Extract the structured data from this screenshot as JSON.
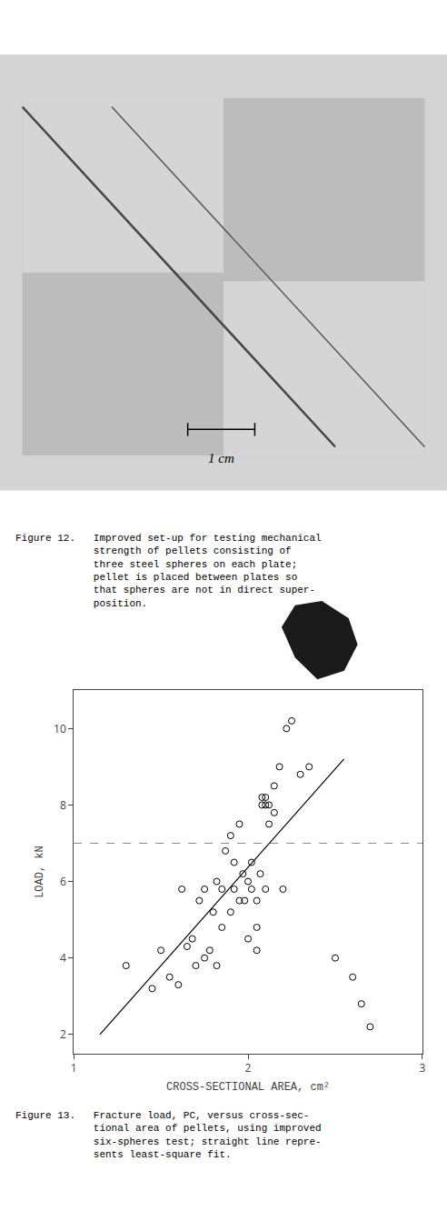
{
  "chart_data": {
    "type": "scatter",
    "xlabel": "CROSS-SECTIONAL AREA, cm²",
    "ylabel": "LOAD, kN",
    "series": [
      {
        "type": "scatter",
        "marker": "open_circle",
        "color": "black",
        "x": [
          1.3,
          1.45,
          1.5,
          1.55,
          1.6,
          1.62,
          1.65,
          1.68,
          1.7,
          1.72,
          1.75,
          1.75,
          1.78,
          1.8,
          1.82,
          1.82,
          1.85,
          1.85,
          1.87,
          1.9,
          1.9,
          1.92,
          1.92,
          1.95,
          1.95,
          1.97,
          1.98,
          2.0,
          2.0,
          2.02,
          2.02,
          2.05,
          2.05,
          2.05,
          2.07,
          2.08,
          2.08,
          2.1,
          2.1,
          2.1,
          2.12,
          2.12,
          2.15,
          2.15,
          2.18,
          2.2,
          2.22,
          2.25,
          2.3,
          2.35,
          2.5,
          2.6,
          2.65,
          2.7
        ],
        "values": [
          3.8,
          3.2,
          4.2,
          3.5,
          3.3,
          5.8,
          4.3,
          4.5,
          3.8,
          5.5,
          4.0,
          5.8,
          4.2,
          5.2,
          3.8,
          6.0,
          4.8,
          5.8,
          6.8,
          5.2,
          7.2,
          5.8,
          6.5,
          5.5,
          7.5,
          6.2,
          5.5,
          6.0,
          4.5,
          6.5,
          5.8,
          5.5,
          4.8,
          4.2,
          6.2,
          8.0,
          8.2,
          8.0,
          8.2,
          5.8,
          7.5,
          8.0,
          8.5,
          7.8,
          9.0,
          5.8,
          10.0,
          10.2,
          8.8,
          9.0,
          4.0,
          3.5,
          2.8,
          2.2
        ]
      },
      {
        "type": "line",
        "line_style": "solid",
        "color": "black",
        "x": [
          1.15,
          2.55
        ],
        "values": [
          2.0,
          9.2
        ]
      }
    ],
    "xlim": [
      1.0,
      3.0
    ],
    "ylim": [
      1.5,
      11.0
    ],
    "xticks": [
      1,
      2,
      3
    ],
    "yticks": [
      2,
      4,
      6,
      8,
      10
    ],
    "grid": false,
    "hlines": [
      7.0
    ],
    "annotations": [
      "Figure 12.   Improved set-up for testing mechanical\n             strength of pellets consisting of\n             three steel spheres on each plate;\n             pellet is placed between plates so\n             that spheres are not in direct super-\n             position.",
      "1 cm",
      "Figure 13.   Fracture load, PC, versus cross-sec-\n             tional area of pellets, using improved\n             six-spheres test; straight line repre-\n             sents least-square fit."
    ]
  }
}
